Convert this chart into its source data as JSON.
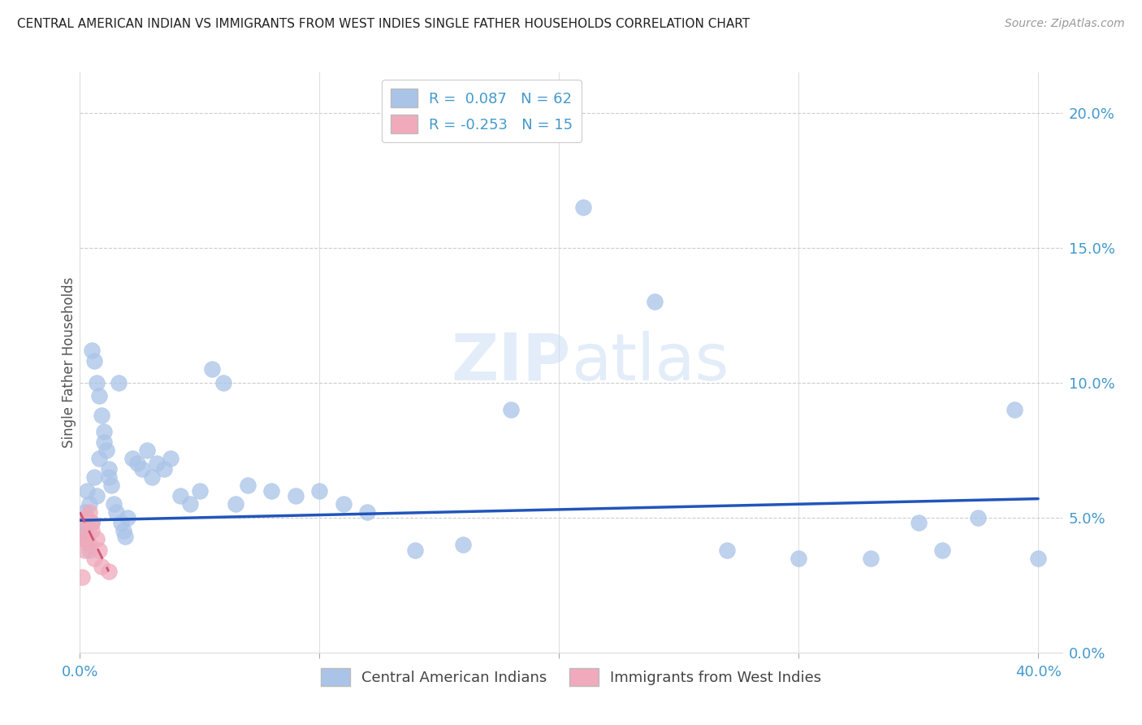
{
  "title": "CENTRAL AMERICAN INDIAN VS IMMIGRANTS FROM WEST INDIES SINGLE FATHER HOUSEHOLDS CORRELATION CHART",
  "source": "Source: ZipAtlas.com",
  "ylabel": "Single Father Households",
  "watermark": "ZIPatlas",
  "blue_R": 0.087,
  "blue_N": 62,
  "pink_R": -0.253,
  "pink_N": 15,
  "blue_scatter_x": [
    0.001,
    0.002,
    0.002,
    0.003,
    0.003,
    0.004,
    0.004,
    0.005,
    0.005,
    0.006,
    0.006,
    0.007,
    0.007,
    0.008,
    0.008,
    0.009,
    0.01,
    0.01,
    0.011,
    0.012,
    0.012,
    0.013,
    0.014,
    0.015,
    0.016,
    0.017,
    0.018,
    0.019,
    0.02,
    0.022,
    0.024,
    0.026,
    0.028,
    0.03,
    0.032,
    0.035,
    0.038,
    0.042,
    0.046,
    0.05,
    0.055,
    0.06,
    0.065,
    0.07,
    0.08,
    0.09,
    0.1,
    0.11,
    0.12,
    0.14,
    0.16,
    0.18,
    0.21,
    0.24,
    0.27,
    0.3,
    0.33,
    0.36,
    0.39,
    0.4,
    0.375,
    0.35
  ],
  "blue_scatter_y": [
    0.048,
    0.052,
    0.045,
    0.06,
    0.042,
    0.055,
    0.038,
    0.112,
    0.048,
    0.108,
    0.065,
    0.1,
    0.058,
    0.095,
    0.072,
    0.088,
    0.082,
    0.078,
    0.075,
    0.068,
    0.065,
    0.062,
    0.055,
    0.052,
    0.1,
    0.048,
    0.045,
    0.043,
    0.05,
    0.072,
    0.07,
    0.068,
    0.075,
    0.065,
    0.07,
    0.068,
    0.072,
    0.058,
    0.055,
    0.06,
    0.105,
    0.1,
    0.055,
    0.062,
    0.06,
    0.058,
    0.06,
    0.055,
    0.052,
    0.038,
    0.04,
    0.09,
    0.165,
    0.13,
    0.038,
    0.035,
    0.035,
    0.038,
    0.09,
    0.035,
    0.05,
    0.048
  ],
  "pink_scatter_x": [
    0.001,
    0.001,
    0.002,
    0.002,
    0.003,
    0.003,
    0.004,
    0.004,
    0.005,
    0.005,
    0.006,
    0.007,
    0.008,
    0.009,
    0.012
  ],
  "pink_scatter_y": [
    0.042,
    0.028,
    0.048,
    0.038,
    0.05,
    0.043,
    0.052,
    0.04,
    0.048,
    0.045,
    0.035,
    0.042,
    0.038,
    0.032,
    0.03
  ],
  "blue_line_x0": 0.0,
  "blue_line_x1": 0.4,
  "blue_line_y0": 0.049,
  "blue_line_y1": 0.057,
  "pink_line_x0": 0.0,
  "pink_line_x1": 0.012,
  "pink_line_y0": 0.052,
  "pink_line_y1": 0.03,
  "xlim": [
    0.0,
    0.41
  ],
  "ylim": [
    0.0,
    0.215
  ],
  "xtick_vals": [
    0.0,
    0.1,
    0.2,
    0.3,
    0.4
  ],
  "xtick_labels": [
    "0.0%",
    "",
    "",
    "",
    "40.0%"
  ],
  "ytick_vals": [
    0.0,
    0.05,
    0.1,
    0.15,
    0.2
  ],
  "ytick_right_labels": [
    "0.0%",
    "5.0%",
    "10.0%",
    "15.0%",
    "20.0%"
  ],
  "grid_color": "#cccccc",
  "blue_color": "#aac4e8",
  "blue_line_color": "#2255bb",
  "pink_color": "#f0aabb",
  "pink_line_color": "#cc5577",
  "background_color": "#ffffff",
  "title_color": "#222222",
  "axis_color": "#4499cc",
  "legend_bg": "#ffffff"
}
